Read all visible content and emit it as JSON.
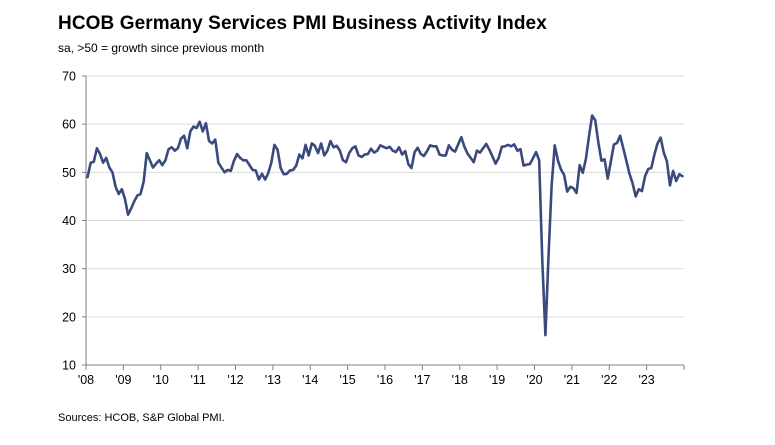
{
  "title": "HCOB Germany Services PMI Business Activity Index",
  "subtitle": "sa, >50 = growth since previous month",
  "source": "Sources: HCOB, S&P Global PMI.",
  "colors": {
    "line": "#3b4a7d",
    "axis": "#7f7f7f",
    "grid": "#d9d9d9"
  },
  "chart_data": {
    "type": "line",
    "ylim": [
      10,
      70
    ],
    "yticks": [
      10,
      20,
      30,
      40,
      50,
      60,
      70
    ],
    "xlim": [
      "2008-01",
      "2024-01"
    ],
    "xticks": [
      {
        "label": "'08",
        "date": "2008-01"
      },
      {
        "label": "'09",
        "date": "2009-01"
      },
      {
        "label": "'10",
        "date": "2010-01"
      },
      {
        "label": "'11",
        "date": "2011-01"
      },
      {
        "label": "'12",
        "date": "2012-01"
      },
      {
        "label": "'13",
        "date": "2013-01"
      },
      {
        "label": "'14",
        "date": "2014-01"
      },
      {
        "label": "'15",
        "date": "2015-01"
      },
      {
        "label": "'16",
        "date": "2016-01"
      },
      {
        "label": "'17",
        "date": "2017-01"
      },
      {
        "label": "'18",
        "date": "2018-01"
      },
      {
        "label": "'19",
        "date": "2019-01"
      },
      {
        "label": "'20",
        "date": "2020-01"
      },
      {
        "label": "'21",
        "date": "2021-01"
      },
      {
        "label": "'22",
        "date": "2022-01"
      },
      {
        "label": "'23",
        "date": "2023-01"
      }
    ],
    "grid": "horizontal",
    "series": [
      {
        "x": [
          "2008-01",
          "2008-02",
          "2008-03",
          "2008-04",
          "2008-05",
          "2008-06",
          "2008-07",
          "2008-08",
          "2008-09",
          "2008-10",
          "2008-11",
          "2008-12",
          "2009-01",
          "2009-02",
          "2009-03",
          "2009-04",
          "2009-05",
          "2009-06",
          "2009-07",
          "2009-08",
          "2009-09",
          "2009-10",
          "2009-11",
          "2009-12",
          "2010-01",
          "2010-02",
          "2010-03",
          "2010-04",
          "2010-05",
          "2010-06",
          "2010-07",
          "2010-08",
          "2010-09",
          "2010-10",
          "2010-11",
          "2010-12",
          "2011-01",
          "2011-02",
          "2011-03",
          "2011-04",
          "2011-05",
          "2011-06",
          "2011-07",
          "2011-08",
          "2011-09",
          "2011-10",
          "2011-11",
          "2011-12",
          "2012-01",
          "2012-02",
          "2012-03",
          "2012-04",
          "2012-05",
          "2012-06",
          "2012-07",
          "2012-08",
          "2012-09",
          "2012-10",
          "2012-11",
          "2012-12",
          "2013-01",
          "2013-02",
          "2013-03",
          "2013-04",
          "2013-05",
          "2013-06",
          "2013-07",
          "2013-08",
          "2013-09",
          "2013-10",
          "2013-11",
          "2013-12",
          "2014-01",
          "2014-02",
          "2014-03",
          "2014-04",
          "2014-05",
          "2014-06",
          "2014-07",
          "2014-08",
          "2014-09",
          "2014-10",
          "2014-11",
          "2014-12",
          "2015-01",
          "2015-02",
          "2015-03",
          "2015-04",
          "2015-05",
          "2015-06",
          "2015-07",
          "2015-08",
          "2015-09",
          "2015-10",
          "2015-11",
          "2015-12",
          "2016-01",
          "2016-02",
          "2016-03",
          "2016-04",
          "2016-05",
          "2016-06",
          "2016-07",
          "2016-08",
          "2016-09",
          "2016-10",
          "2016-11",
          "2016-12",
          "2017-01",
          "2017-02",
          "2017-03",
          "2017-04",
          "2017-05",
          "2017-06",
          "2017-07",
          "2017-08",
          "2017-09",
          "2017-10",
          "2017-11",
          "2017-12",
          "2018-01",
          "2018-02",
          "2018-03",
          "2018-04",
          "2018-05",
          "2018-06",
          "2018-07",
          "2018-08",
          "2018-09",
          "2018-10",
          "2018-11",
          "2018-12",
          "2019-01",
          "2019-02",
          "2019-03",
          "2019-04",
          "2019-05",
          "2019-06",
          "2019-07",
          "2019-08",
          "2019-09",
          "2019-10",
          "2019-11",
          "2019-12",
          "2020-01",
          "2020-02",
          "2020-03",
          "2020-04",
          "2020-05",
          "2020-06",
          "2020-07",
          "2020-08",
          "2020-09",
          "2020-10",
          "2020-11",
          "2020-12",
          "2021-01",
          "2021-02",
          "2021-03",
          "2021-04",
          "2021-05",
          "2021-06",
          "2021-07",
          "2021-08",
          "2021-09",
          "2021-10",
          "2021-11",
          "2021-12",
          "2022-01",
          "2022-02",
          "2022-03",
          "2022-04",
          "2022-05",
          "2022-06",
          "2022-07",
          "2022-08",
          "2022-09",
          "2022-10",
          "2022-11",
          "2022-12",
          "2023-01",
          "2023-02",
          "2023-03",
          "2023-04",
          "2023-05",
          "2023-06",
          "2023-07",
          "2023-08",
          "2023-09",
          "2023-10",
          "2023-11",
          "2023-12"
        ],
        "values": [
          49.0,
          52.0,
          52.2,
          55.0,
          53.8,
          52.0,
          53.0,
          51.0,
          50.0,
          47.0,
          45.5,
          46.5,
          44.5,
          41.2,
          42.5,
          44.0,
          45.2,
          45.5,
          48.0,
          54.0,
          52.5,
          51.0,
          51.8,
          52.5,
          51.5,
          52.5,
          54.8,
          55.2,
          54.5,
          55.0,
          57.0,
          57.6,
          55.0,
          58.5,
          59.5,
          59.2,
          60.5,
          58.5,
          60.2,
          56.5,
          56.0,
          56.8,
          52.0,
          51.0,
          50.0,
          50.5,
          50.3,
          52.4,
          53.8,
          53.0,
          52.5,
          52.5,
          51.5,
          50.5,
          50.4,
          48.5,
          49.7,
          48.5,
          49.8,
          52.0,
          55.7,
          54.7,
          50.9,
          49.6,
          49.7,
          50.4,
          50.5,
          51.4,
          53.7,
          52.9,
          55.7,
          53.5,
          56.0,
          55.5,
          54.0,
          56.0,
          53.5,
          54.5,
          56.5,
          55.2,
          55.5,
          54.5,
          52.5,
          52.1,
          54.0,
          55.0,
          55.4,
          53.5,
          53.2,
          53.7,
          53.8,
          54.9,
          54.1,
          54.5,
          55.6,
          55.3,
          55.0,
          55.3,
          54.5,
          54.2,
          55.2,
          53.7,
          54.4,
          51.7,
          50.9,
          54.2,
          55.1,
          53.8,
          53.4,
          54.4,
          55.6,
          55.4,
          55.4,
          53.7,
          53.5,
          53.5,
          55.6,
          54.7,
          54.3,
          55.8,
          57.3,
          55.3,
          53.9,
          53.0,
          52.1,
          54.5,
          54.1,
          55.0,
          55.9,
          54.7,
          53.3,
          51.8,
          53.0,
          55.3,
          55.4,
          55.7,
          55.4,
          55.8,
          54.5,
          54.8,
          51.4,
          51.6,
          51.7,
          52.9,
          54.2,
          52.5,
          31.7,
          16.2,
          32.6,
          47.3,
          55.6,
          52.5,
          50.6,
          49.5,
          46.0,
          47.0,
          46.7,
          45.7,
          51.5,
          49.9,
          52.8,
          57.5,
          61.8,
          60.8,
          56.2,
          52.4,
          52.7,
          48.7,
          52.2,
          55.8,
          56.1,
          57.6,
          55.0,
          52.4,
          49.7,
          47.7,
          45.0,
          46.5,
          46.1,
          49.2,
          50.7,
          50.9,
          53.7,
          56.0,
          57.2,
          54.1,
          52.3,
          47.3,
          50.3,
          48.2,
          49.6,
          49.2
        ]
      }
    ]
  }
}
